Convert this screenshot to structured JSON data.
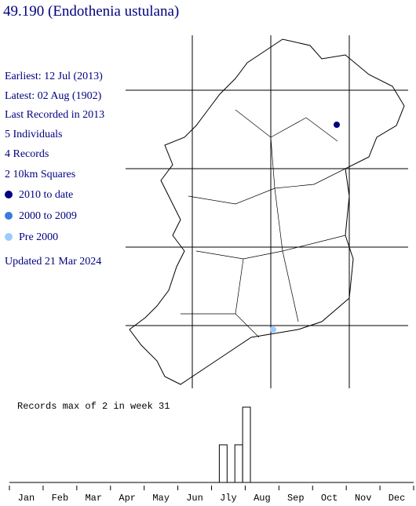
{
  "header": {
    "title": "49.190 (Endothenia ustulana)"
  },
  "summary": {
    "earliest": "Earliest: 12 Jul (2013)",
    "latest": "Latest: 02 Aug (1902)",
    "last_recorded": "Last Recorded in 2013",
    "individuals": "5 Individuals",
    "records": "4 Records",
    "squares": "2 10km Squares"
  },
  "legend": [
    {
      "label": "2010 to date",
      "color": "#000080"
    },
    {
      "label": "2000 to 2009",
      "color": "#3a7be0"
    },
    {
      "label": "Pre 2000",
      "color": "#99ccff"
    }
  ],
  "updated": "Updated 21 Mar 2024",
  "chart_data": {
    "type": "bar",
    "title": "Records max of 2 in week 31",
    "categories": [
      "Jan",
      "Feb",
      "Mar",
      "Apr",
      "May",
      "Jun",
      "Jly",
      "Aug",
      "Sep",
      "Oct",
      "Nov",
      "Dec"
    ],
    "x": [
      28,
      30,
      31
    ],
    "values": [
      1,
      1,
      2
    ],
    "xlim": [
      1,
      53
    ],
    "ylim": [
      0,
      2
    ],
    "color": "#ffffff"
  }
}
